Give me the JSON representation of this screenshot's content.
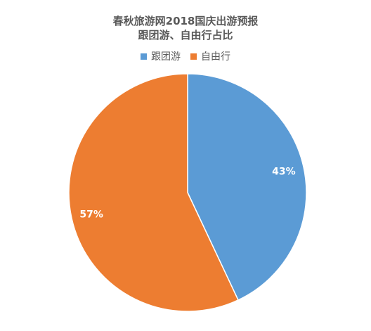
{
  "chart_data": {
    "type": "pie",
    "title": "春秋旅游网2018国庆出游预报",
    "subtitle": "跟团游、自由行占比",
    "legend_position": "top",
    "slices": [
      {
        "name": "跟团游",
        "value": 43,
        "label": "43%",
        "color": "#5B9BD5"
      },
      {
        "name": "自由行",
        "value": 57,
        "label": "57%",
        "color": "#ED7D31"
      }
    ]
  }
}
